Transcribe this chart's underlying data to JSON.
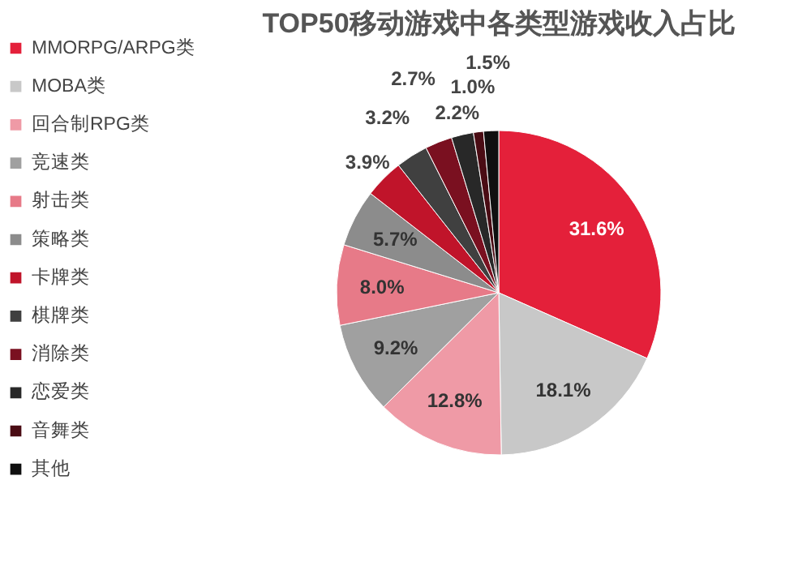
{
  "chart_data": {
    "type": "pie",
    "title": "TOP50移动游戏中各类型游戏收入占比",
    "categories": [
      "MMORPG/ARPG类",
      "MOBA类",
      "回合制RPG类",
      "竞速类",
      "射击类",
      "策略类",
      "卡牌类",
      "棋牌类",
      "消除类",
      "恋爱类",
      "音舞类",
      "其他"
    ],
    "values": [
      31.6,
      18.1,
      12.8,
      9.2,
      8.0,
      5.7,
      3.9,
      3.2,
      2.7,
      2.2,
      1.0,
      1.5
    ],
    "value_labels": [
      "31.6%",
      "18.1%",
      "12.8%",
      "9.2%",
      "8.0%",
      "5.7%",
      "3.9%",
      "3.2%",
      "2.7%",
      "2.2%",
      "1.0%",
      "1.5%"
    ],
    "colors": [
      "#e4203a",
      "#c8c8c8",
      "#ef9aa6",
      "#a0a0a0",
      "#e77a88",
      "#8c8c8c",
      "#c0142a",
      "#404040",
      "#7a1020",
      "#282828",
      "#4a0c14",
      "#101010"
    ],
    "legend": "left"
  }
}
